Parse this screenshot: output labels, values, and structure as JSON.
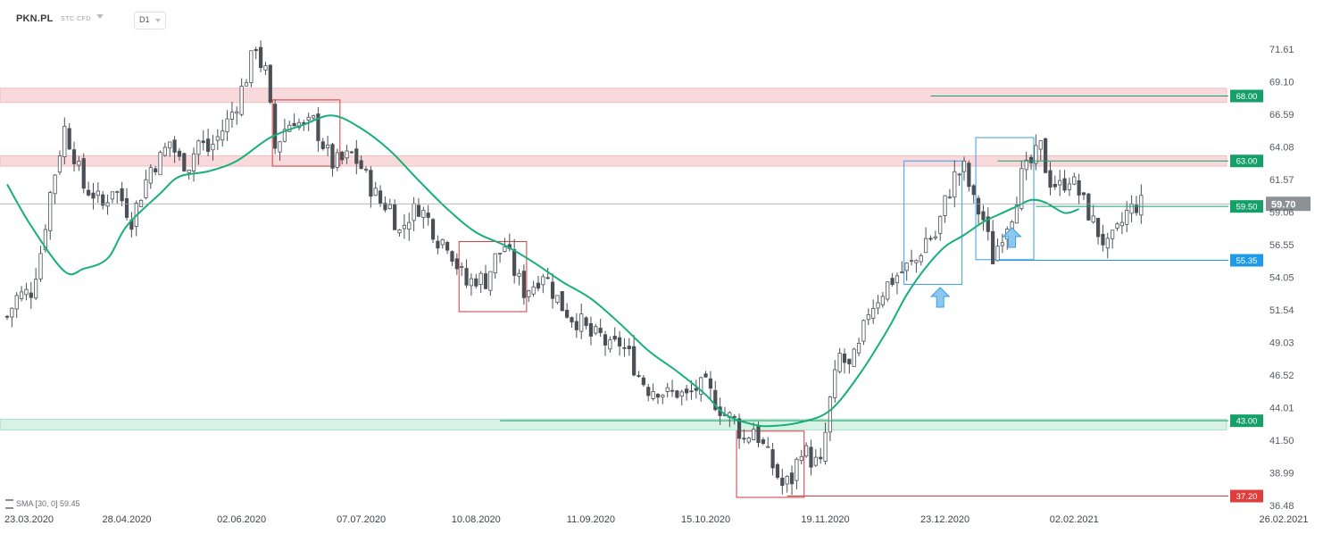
{
  "toolbar": {
    "symbol": "PKN.PL",
    "instrument_type": "STC CFD",
    "timeframe": "D1"
  },
  "indicator_legend": {
    "label": "SMA [30, 0] 59.45"
  },
  "colors": {
    "up_candle": "#ffffff",
    "down_candle": "#4a5056",
    "wick": "#4a5056",
    "sma": "#18b07a",
    "resistance_zone": "#f8d9dc",
    "support_zone": "#d8f3e6",
    "green_tag": "#15a06a",
    "blue_tag": "#1e9be6",
    "red_tag": "#e03d3d",
    "current_tag": "#8c9196"
  },
  "chart_data": {
    "type": "candlestick",
    "title": "",
    "ylim": [
      36.0,
      74.5
    ],
    "y_ticks": [
      "71.61",
      "69.10",
      "66.59",
      "64.08",
      "61.57",
      "59.06",
      "56.55",
      "54.05",
      "51.54",
      "49.03",
      "46.52",
      "44.01",
      "41.50",
      "38.99",
      "36.48"
    ],
    "x_tick_labels": [
      "23.03.2020",
      "28.04.2020",
      "02.06.2020",
      "07.07.2020",
      "10.08.2020",
      "11.09.2020",
      "15.10.2020",
      "19.11.2020",
      "23.12.2020",
      "02.02.2021",
      "26.02.2021"
    ],
    "x_tick_bar_index": [
      0,
      25,
      49,
      74,
      98,
      122,
      146,
      171,
      196,
      223,
      241
    ],
    "grid": false,
    "current_price": {
      "value": 59.7,
      "label": "59.70"
    },
    "level_lines": [
      {
        "label": "68.00",
        "value": 68.0,
        "style": "green",
        "from_bar": 193
      },
      {
        "label": "63.00",
        "value": 63.0,
        "style": "green",
        "from_bar": 207
      },
      {
        "label": "59.50",
        "value": 59.5,
        "style": "green",
        "from_bar": 215
      },
      {
        "label": "55.35",
        "value": 55.35,
        "style": "blue",
        "from_bar": 207
      },
      {
        "label": "43.00",
        "value": 43.0,
        "style": "green",
        "from_bar": 103
      },
      {
        "label": "37.20",
        "value": 37.2,
        "style": "red",
        "from_bar": 163
      }
    ],
    "zones": [
      {
        "type": "resistance",
        "from": 67.5,
        "to": 68.6
      },
      {
        "type": "resistance",
        "from": 62.6,
        "to": 63.4
      },
      {
        "type": "support",
        "from": 42.3,
        "to": 43.1
      }
    ],
    "boxes": [
      {
        "color": "red",
        "from_bar": 56,
        "to_bar": 69,
        "low": 62.6,
        "high": 67.7
      },
      {
        "color": "red",
        "from_bar": 95,
        "to_bar": 108,
        "low": 51.4,
        "high": 56.8
      },
      {
        "color": "red",
        "from_bar": 153,
        "to_bar": 166,
        "low": 37.1,
        "high": 42.2
      },
      {
        "color": "blue",
        "from_bar": 188,
        "to_bar": 199,
        "low": 53.5,
        "high": 63.0
      },
      {
        "color": "blue",
        "from_bar": 203,
        "to_bar": 214,
        "low": 55.4,
        "high": 64.8
      }
    ],
    "arrows": [
      {
        "bar": 195,
        "price": 52.5,
        "direction": "up"
      },
      {
        "bar": 210,
        "price": 57.1,
        "direction": "up"
      }
    ],
    "sma": {
      "period": 30,
      "last": 59.45,
      "knots": [
        [
          0,
          61.2
        ],
        [
          5,
          58.0
        ],
        [
          12,
          54.5
        ],
        [
          16,
          54.7
        ],
        [
          21,
          55.5
        ],
        [
          25,
          58.0
        ],
        [
          32,
          60.5
        ],
        [
          36,
          61.8
        ],
        [
          42,
          62.2
        ],
        [
          48,
          63.0
        ],
        [
          55,
          64.8
        ],
        [
          62,
          65.8
        ],
        [
          68,
          66.5
        ],
        [
          74,
          65.5
        ],
        [
          80,
          63.8
        ],
        [
          86,
          61.5
        ],
        [
          92,
          59.3
        ],
        [
          98,
          57.5
        ],
        [
          104,
          56.5
        ],
        [
          110,
          55.2
        ],
        [
          116,
          53.7
        ],
        [
          122,
          52.4
        ],
        [
          128,
          50.5
        ],
        [
          134,
          48.4
        ],
        [
          140,
          46.8
        ],
        [
          146,
          45.0
        ],
        [
          150,
          43.5
        ],
        [
          156,
          42.7
        ],
        [
          160,
          42.6
        ],
        [
          166,
          42.9
        ],
        [
          172,
          43.8
        ],
        [
          178,
          46.5
        ],
        [
          184,
          50.0
        ],
        [
          188,
          52.7
        ],
        [
          192,
          54.8
        ],
        [
          196,
          56.4
        ],
        [
          200,
          57.3
        ],
        [
          204,
          58.3
        ],
        [
          208,
          59.0
        ],
        [
          211,
          59.5
        ],
        [
          214,
          60.0
        ],
        [
          217,
          59.8
        ],
        [
          221,
          59.0
        ],
        [
          224,
          59.3
        ]
      ]
    },
    "ohlc_anchors": [
      [
        0,
        51.0
      ],
      [
        2,
        52.5
      ],
      [
        5,
        53.0
      ],
      [
        7,
        56.0
      ],
      [
        9,
        60.5
      ],
      [
        11,
        63.8
      ],
      [
        12,
        65.5
      ],
      [
        14,
        63.5
      ],
      [
        16,
        61.0
      ],
      [
        18,
        60.5
      ],
      [
        20,
        59.5
      ],
      [
        22,
        61.0
      ],
      [
        24,
        60.0
      ],
      [
        26,
        58.5
      ],
      [
        28,
        60.5
      ],
      [
        30,
        62.5
      ],
      [
        32,
        63.2
      ],
      [
        34,
        64.5
      ],
      [
        36,
        63.0
      ],
      [
        38,
        62.8
      ],
      [
        40,
        64.5
      ],
      [
        42,
        63.8
      ],
      [
        44,
        64.8
      ],
      [
        46,
        66.0
      ],
      [
        48,
        67.5
      ],
      [
        50,
        69.5
      ],
      [
        52,
        72.0
      ],
      [
        53,
        70.5
      ],
      [
        54,
        69.8
      ],
      [
        56,
        64.0
      ],
      [
        58,
        65.5
      ],
      [
        60,
        66.3
      ],
      [
        62,
        65.5
      ],
      [
        64,
        66.0
      ],
      [
        66,
        64.3
      ],
      [
        68,
        62.8
      ],
      [
        70,
        63.0
      ],
      [
        72,
        63.5
      ],
      [
        74,
        62.5
      ],
      [
        76,
        61.0
      ],
      [
        78,
        59.8
      ],
      [
        80,
        59.5
      ],
      [
        82,
        57.5
      ],
      [
        84,
        58.8
      ],
      [
        86,
        59.5
      ],
      [
        88,
        58.5
      ],
      [
        90,
        57.0
      ],
      [
        92,
        56.8
      ],
      [
        94,
        55.0
      ],
      [
        96,
        53.5
      ],
      [
        98,
        54.0
      ],
      [
        100,
        53.8
      ],
      [
        102,
        55.5
      ],
      [
        104,
        56.5
      ],
      [
        106,
        54.5
      ],
      [
        108,
        53.0
      ],
      [
        110,
        53.5
      ],
      [
        112,
        54.5
      ],
      [
        114,
        53.0
      ],
      [
        116,
        51.8
      ],
      [
        118,
        51.0
      ],
      [
        120,
        50.5
      ],
      [
        122,
        49.5
      ],
      [
        124,
        49.5
      ],
      [
        126,
        48.5
      ],
      [
        128,
        49.0
      ],
      [
        130,
        48.0
      ],
      [
        132,
        46.5
      ],
      [
        134,
        45.5
      ],
      [
        136,
        45.5
      ],
      [
        138,
        45.0
      ],
      [
        140,
        45.2
      ],
      [
        142,
        44.8
      ],
      [
        144,
        45.5
      ],
      [
        146,
        45.6
      ],
      [
        148,
        44.5
      ],
      [
        150,
        43.5
      ],
      [
        152,
        43.0
      ],
      [
        154,
        41.5
      ],
      [
        156,
        42.5
      ],
      [
        158,
        41.0
      ],
      [
        160,
        39.5
      ],
      [
        162,
        38.0
      ],
      [
        164,
        38.5
      ],
      [
        166,
        41.0
      ],
      [
        168,
        40.0
      ],
      [
        170,
        39.5
      ],
      [
        172,
        44.5
      ],
      [
        174,
        48.0
      ],
      [
        176,
        47.0
      ],
      [
        178,
        48.5
      ],
      [
        180,
        51.5
      ],
      [
        182,
        52.5
      ],
      [
        184,
        53.5
      ],
      [
        186,
        54.2
      ],
      [
        188,
        54.8
      ],
      [
        190,
        55.3
      ],
      [
        192,
        57.0
      ],
      [
        194,
        57.2
      ],
      [
        196,
        59.8
      ],
      [
        198,
        61.8
      ],
      [
        200,
        62.4
      ],
      [
        202,
        59.8
      ],
      [
        204,
        58.5
      ],
      [
        206,
        55.5
      ],
      [
        208,
        57.5
      ],
      [
        210,
        59.0
      ],
      [
        212,
        61.8
      ],
      [
        214,
        62.8
      ],
      [
        216,
        64.0
      ],
      [
        217,
        62.5
      ],
      [
        218,
        61.5
      ],
      [
        220,
        61.0
      ],
      [
        222,
        61.8
      ],
      [
        224,
        60.5
      ],
      [
        226,
        59.0
      ],
      [
        228,
        57.5
      ],
      [
        230,
        56.3
      ],
      [
        232,
        57.5
      ],
      [
        234,
        59.0
      ],
      [
        236,
        59.6
      ],
      [
        237,
        59.7
      ]
    ]
  }
}
